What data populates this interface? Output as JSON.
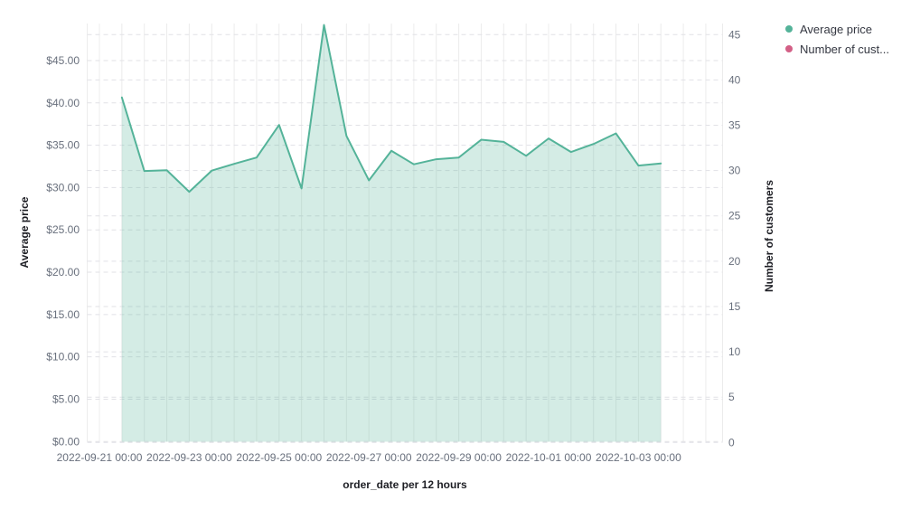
{
  "legend": {
    "items": [
      {
        "label": "Average price",
        "color": "#54B399"
      },
      {
        "label": "Number of cust...",
        "color": "#D36086"
      }
    ]
  },
  "chart_data": {
    "type": "area",
    "title": "",
    "xlabel": "order_date per 12 hours",
    "ylabel": "Average price",
    "ylabel_right": "Number of customers",
    "x": [
      "2022-09-21 12:00",
      "2022-09-22 00:00",
      "2022-09-22 12:00",
      "2022-09-23 00:00",
      "2022-09-23 12:00",
      "2022-09-24 00:00",
      "2022-09-24 12:00",
      "2022-09-25 00:00",
      "2022-09-25 12:00",
      "2022-09-26 00:00",
      "2022-09-26 12:00",
      "2022-09-27 00:00",
      "2022-09-27 12:00",
      "2022-09-28 00:00",
      "2022-09-28 12:00",
      "2022-09-29 00:00",
      "2022-09-29 12:00",
      "2022-09-30 00:00",
      "2022-09-30 12:00",
      "2022-10-01 00:00",
      "2022-10-01 12:00",
      "2022-10-02 00:00",
      "2022-10-02 12:00",
      "2022-10-03 00:00",
      "2022-10-03 12:00"
    ],
    "series": [
      {
        "name": "Average price",
        "yaxis": "left",
        "color": "#54B399",
        "fill_opacity": 0.25,
        "values": [
          40.65,
          31.95,
          32.05,
          29.5,
          32.0,
          32.8,
          33.55,
          37.4,
          29.9,
          49.2,
          36.1,
          30.85,
          34.35,
          32.75,
          33.35,
          33.55,
          35.65,
          35.4,
          33.75,
          35.8,
          34.2,
          35.15,
          36.4,
          32.6,
          32.85
        ]
      },
      {
        "name": "Number of customers",
        "yaxis": "right",
        "color": "#D36086",
        "values": []
      }
    ],
    "x_tick_labels": [
      "2022-09-21 00:00",
      "2022-09-23 00:00",
      "2022-09-25 00:00",
      "2022-09-27 00:00",
      "2022-09-29 00:00",
      "2022-10-01 00:00",
      "2022-10-03 00:00"
    ],
    "left_axis": {
      "tick_values": [
        0,
        5,
        10,
        15,
        20,
        25,
        30,
        35,
        40,
        45
      ],
      "tick_labels": [
        "$0.00",
        "$5.00",
        "$10.00",
        "$15.00",
        "$20.00",
        "$25.00",
        "$30.00",
        "$35.00",
        "$40.00",
        "$45.00"
      ],
      "range": [
        0,
        49.4
      ]
    },
    "right_axis": {
      "tick_values": [
        0,
        5,
        10,
        15,
        20,
        25,
        30,
        35,
        40,
        45
      ],
      "tick_labels": [
        "0",
        "5",
        "10",
        "15",
        "20",
        "25",
        "30",
        "35",
        "40",
        "45"
      ],
      "range": [
        0,
        46.2
      ]
    },
    "grid": {
      "vertical_every": "12 hours",
      "horizontal_style": "dashed",
      "legend_position": "right"
    }
  },
  "colors": {
    "grid_vertical": "#ececec",
    "grid_horizontal": "#e1e1e6",
    "tick_label": "#69707d",
    "axis_title": "#1d1e24",
    "legend_text": "#343741",
    "background": "#ffffff"
  }
}
